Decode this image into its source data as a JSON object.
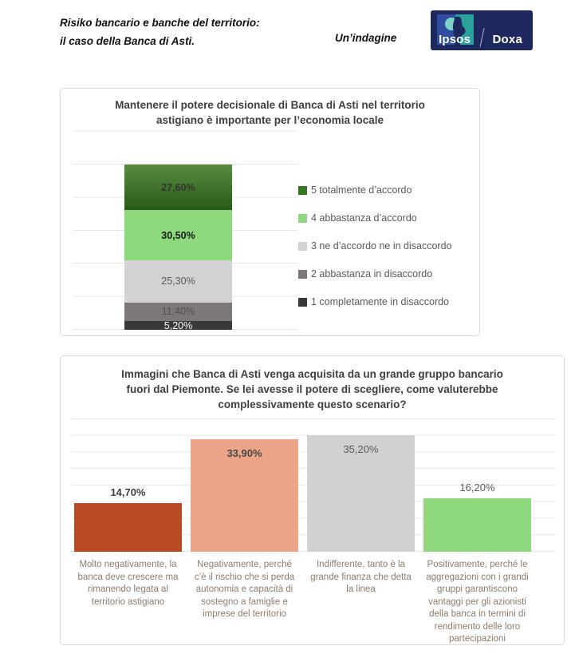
{
  "header": {
    "title_line1": "Risiko bancario e banche del territorio:",
    "title_line2": "il caso della Banca di Asti.",
    "tagline": "Un’indagine",
    "logo": {
      "brand_primary": "Ipsos",
      "brand_secondary": "Doxa",
      "background_color": "#1d295e",
      "emblem_blue": "#2f4ea0",
      "emblem_teal": "#2aa19a"
    }
  },
  "chart_data": [
    {
      "type": "bar",
      "subtype": "stacked-single-column",
      "title": "Mantenere il potere decisionale di Banca di Asti nel territorio astigiano è importante per l’economia locale",
      "ylim": [
        0,
        120
      ],
      "gridline_step_pct": 20,
      "grid": true,
      "legend_position": "right",
      "segments": [
        {
          "label": "5 totalmente d’accordo",
          "value": 27.6,
          "display": "27,60%",
          "color": "#38761d",
          "gradient": true,
          "label_color": "#333333",
          "label_bold": true
        },
        {
          "label": "4 abbastanza d’accordo",
          "value": 30.5,
          "display": "30,50%",
          "color": "#8ed97e",
          "gradient": false,
          "label_color": "#1a1a1a",
          "label_bold": true
        },
        {
          "label": "3 ne d’accordo ne in disaccordo",
          "value": 25.3,
          "display": "25,30%",
          "color": "#d2d2d2",
          "gradient": false,
          "label_color": "#595959",
          "label_bold": false
        },
        {
          "label": "2 abbastanza in disaccordo",
          "value": 11.4,
          "display": "11,40%",
          "color": "#7d7878",
          "gradient": false,
          "label_color": "#565050",
          "label_bold": false
        },
        {
          "label": "1 completamente in disaccordo",
          "value": 5.2,
          "display": "5,20%",
          "color": "#3a3838",
          "gradient": false,
          "label_color": "#ffffff",
          "label_bold": false
        }
      ]
    },
    {
      "type": "bar",
      "title": "Immagini che Banca di Asti venga acquisita da un grande gruppo bancario fuori dal Piemonte. Se lei avesse il potere di scegliere, come valuterebbe complessivamente questo scenario?",
      "ylim": [
        0,
        40
      ],
      "gridline_step_pct": 5,
      "grid": true,
      "category_label_color": "#8c7c6e",
      "categories": [
        "Molto negativamente, la banca deve crescere ma rimanendo legata al territorio astigiano",
        "Negativamente, perché c’è il rischio che si perda autonomia e capacità di sostegno a famiglie e imprese del territorio",
        "Indifferente, tanto è la grande finanza che detta la linea",
        "Positivamente, perché le aggregazioni con i grandi gruppi garantiscono vantaggi per gli azionisti della banca in termini di rendimento delle loro partecipazioni"
      ],
      "bars": [
        {
          "value": 14.7,
          "display": "14,70%",
          "color": "#b94a25",
          "label_position": "above",
          "label_bold": true,
          "label_color": "#3f3f3f"
        },
        {
          "value": 33.9,
          "display": "33,90%",
          "color": "#eca489",
          "label_position": "inside",
          "label_bold": true,
          "label_color": "#474747"
        },
        {
          "value": 35.2,
          "display": "35,20%",
          "color": "#d1d1d1",
          "label_position": "inside",
          "label_bold": false,
          "label_color": "#595959"
        },
        {
          "value": 16.2,
          "display": "16,20%",
          "color": "#8ed97e",
          "label_position": "above",
          "label_bold": false,
          "label_color": "#595959"
        }
      ]
    }
  ]
}
